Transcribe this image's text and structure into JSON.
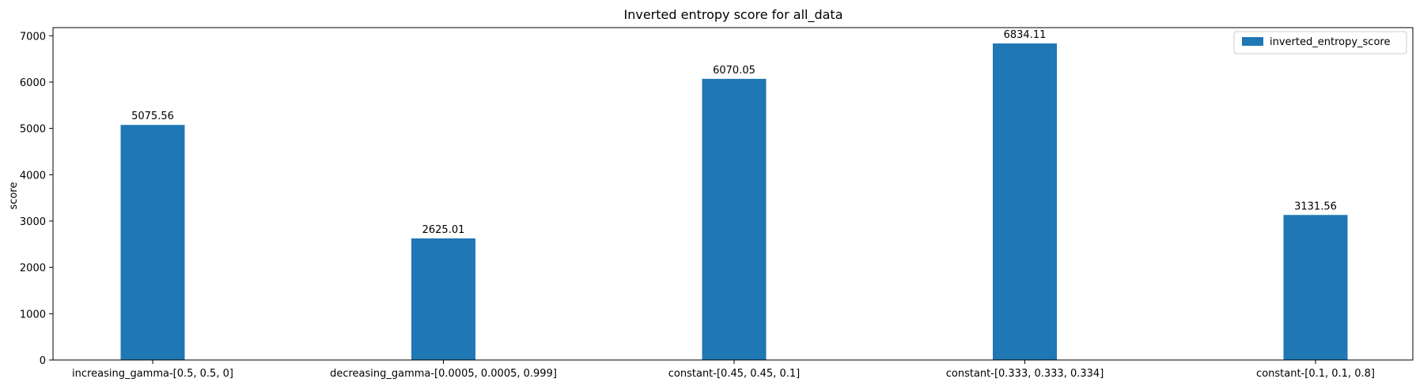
{
  "chart_data": {
    "type": "bar",
    "title": "Inverted entropy score for all_data",
    "xlabel": "",
    "ylabel": "score",
    "categories": [
      "increasing_gamma-[0.5, 0.5, 0]",
      "decreasing_gamma-[0.0005, 0.0005, 0.999]",
      "constant-[0.45, 0.45, 0.1]",
      "constant-[0.333, 0.333, 0.334]",
      "constant-[0.1, 0.1, 0.8]"
    ],
    "series": [
      {
        "name": "inverted_entropy_score",
        "values": [
          5075.56,
          2625.01,
          6070.05,
          6834.11,
          3131.56
        ],
        "labels": [
          "5075.56",
          "2625.01",
          "6070.05",
          "6834.11",
          "3131.56"
        ],
        "color": "#1f77b4"
      }
    ],
    "ylim": [
      0,
      7176
    ],
    "yticks": [
      0,
      1000,
      2000,
      3000,
      4000,
      5000,
      6000,
      7000
    ],
    "grid": false,
    "legend_position": "top-right"
  }
}
